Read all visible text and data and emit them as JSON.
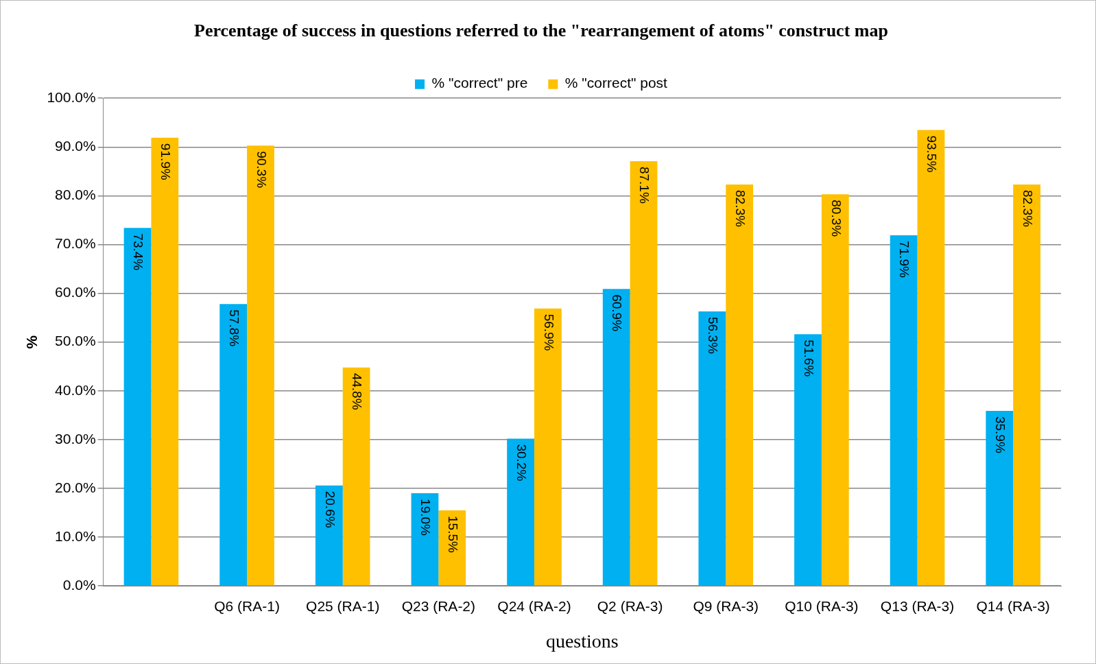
{
  "chart_data": {
    "type": "bar",
    "title": "Percentage of success in questions referred to the \"rearrangement of atoms\" construct map",
    "xlabel": "questions",
    "ylabel": "%",
    "categories": [
      null,
      "Q6 (RA-1)",
      "Q25 (RA-1)",
      "Q23 (RA-2)",
      "Q24 (RA-2)",
      "Q2 (RA-3)",
      "Q9 (RA-3)",
      "Q10 (RA-3)",
      "Q13 (RA-3)",
      "Q14 (RA-3)"
    ],
    "series": [
      {
        "name": "% \"correct\" pre",
        "color": "#00b0f0",
        "values": [
          73.4,
          57.8,
          20.6,
          19.0,
          30.2,
          60.9,
          56.3,
          51.6,
          71.9,
          35.9
        ],
        "value_labels": [
          "73.4%",
          "57.8%",
          "20.6%",
          "19.0%",
          "30.2%",
          "60.9%",
          "56.3%",
          "51.6%",
          "71.9%",
          "35.9%"
        ]
      },
      {
        "name": "% \"correct\" post",
        "color": "#ffc000",
        "values": [
          91.9,
          90.3,
          44.8,
          15.5,
          56.9,
          87.1,
          82.3,
          80.3,
          93.5,
          82.3
        ],
        "value_labels": [
          "91.9%",
          "90.3%",
          "44.8%",
          "15.5%",
          "56.9%",
          "87.1%",
          "82.3%",
          "80.3%",
          "93.5%",
          "82.3%"
        ]
      }
    ],
    "ylim": [
      0,
      100
    ],
    "yticks": [
      {
        "value": 0,
        "label": "0.0%"
      },
      {
        "value": 10,
        "label": "10.0%"
      },
      {
        "value": 20,
        "label": "20.0%"
      },
      {
        "value": 30,
        "label": "30.0%"
      },
      {
        "value": 40,
        "label": "40.0%"
      },
      {
        "value": 50,
        "label": "50.0%"
      },
      {
        "value": 60,
        "label": "60.0%"
      },
      {
        "value": 70,
        "label": "70.0%"
      },
      {
        "value": 80,
        "label": "80.0%"
      },
      {
        "value": 90,
        "label": "90.0%"
      },
      {
        "value": 100,
        "label": "100.0%"
      }
    ],
    "grid": "y",
    "legend": "top"
  }
}
